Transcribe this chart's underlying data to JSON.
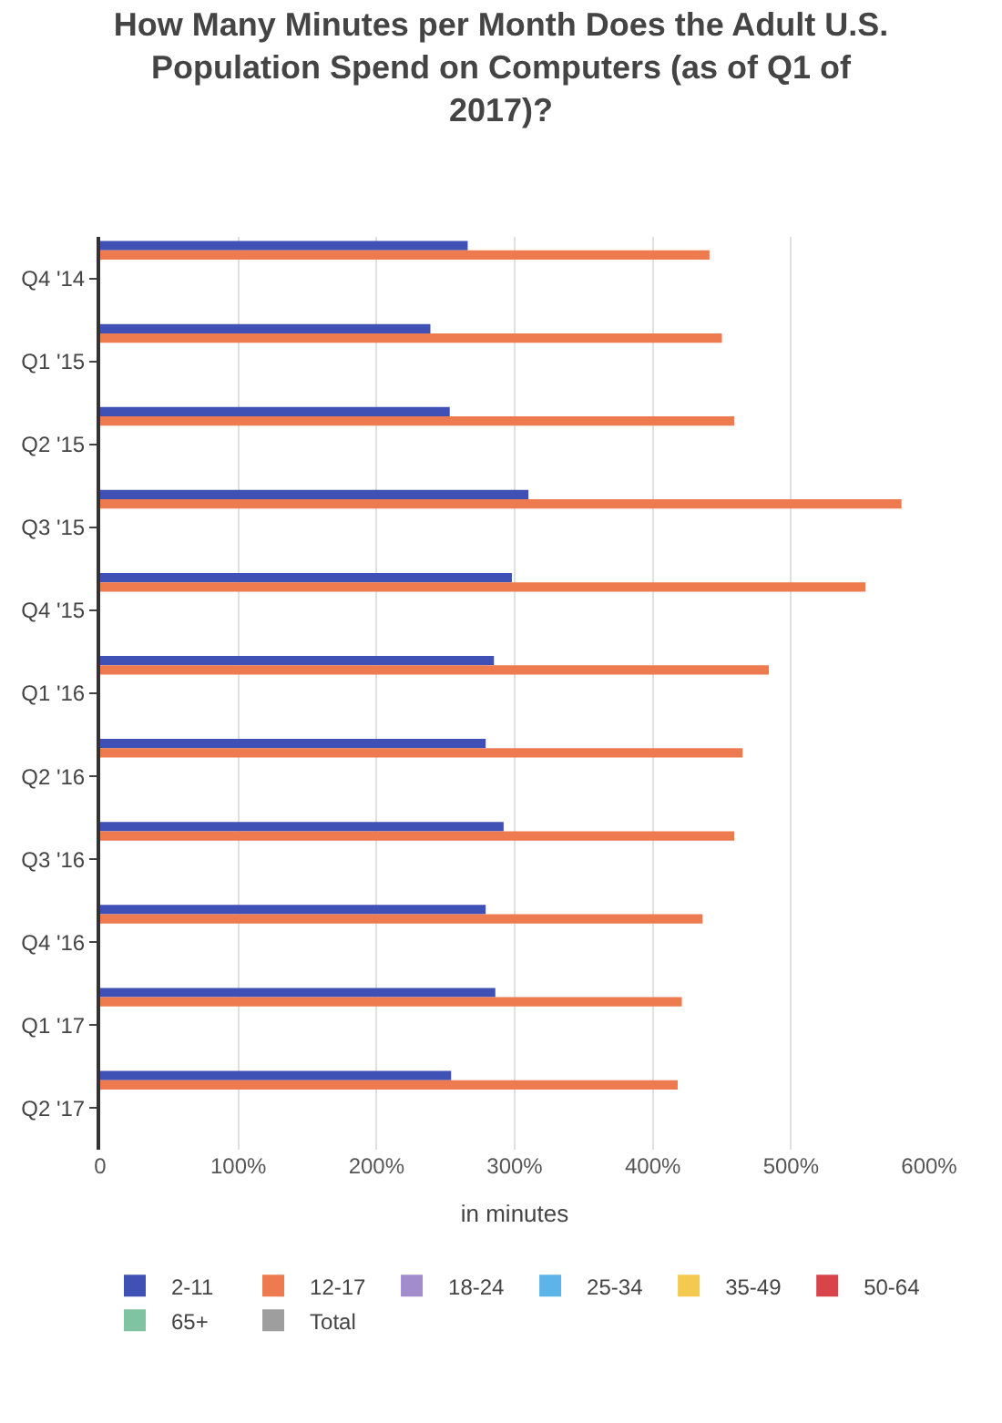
{
  "chart_data": {
    "type": "bar",
    "orientation": "horizontal",
    "title": "How Many Minutes per Month Does the Adult U.S. Population Spend on Computers (as of Q1 of 2017)?",
    "xlabel": "in minutes",
    "categories": [
      "Q4 '14",
      "Q1 '15",
      "Q2 '15",
      "Q3 '15",
      "Q4 '15",
      "Q1 '16",
      "Q2 '16",
      "Q3 '16",
      "Q4 '16",
      "Q1 '17",
      "Q2 '17"
    ],
    "series": [
      {
        "name": "2-11",
        "color": "#3f51b5",
        "values": [
          266,
          239,
          253,
          310,
          298,
          285,
          279,
          292,
          279,
          286,
          254
        ]
      },
      {
        "name": "12-17",
        "color": "#ee7a50",
        "values": [
          441,
          450,
          459,
          580,
          554,
          484,
          465,
          459,
          436,
          421,
          418
        ]
      },
      {
        "name": "18-24",
        "color": "#a28ccb",
        "values": [
          0,
          0,
          0,
          0,
          0,
          0,
          0,
          0,
          0,
          0,
          0
        ]
      },
      {
        "name": "25-34",
        "color": "#5db4e8",
        "values": [
          0,
          0,
          0,
          0,
          0,
          0,
          0,
          0,
          0,
          0,
          0
        ]
      },
      {
        "name": "35-49",
        "color": "#f3c94f",
        "values": [
          0,
          0,
          0,
          0,
          0,
          0,
          0,
          0,
          0,
          0,
          0
        ]
      },
      {
        "name": "50-64",
        "color": "#d9444b",
        "values": [
          0,
          0,
          0,
          0,
          0,
          0,
          0,
          0,
          0,
          0,
          0
        ]
      },
      {
        "name": "65+",
        "color": "#7fc3a3",
        "values": [
          0,
          0,
          0,
          0,
          0,
          0,
          0,
          0,
          0,
          0,
          0
        ]
      },
      {
        "name": "Total",
        "color": "#9e9e9e",
        "values": [
          0,
          0,
          0,
          0,
          0,
          0,
          0,
          0,
          0,
          0,
          0
        ]
      }
    ],
    "xlim": [
      0,
      600
    ],
    "xticks": [
      0,
      {
        "value": 100,
        "label": "100%"
      },
      {
        "value": 200,
        "label": "200%"
      },
      {
        "value": 300,
        "label": "300%"
      },
      {
        "value": 400,
        "label": "400%"
      },
      {
        "value": 500,
        "label": "500%"
      },
      {
        "value": 600,
        "label": "600%"
      }
    ],
    "grid": "x",
    "legend": "bottom"
  }
}
